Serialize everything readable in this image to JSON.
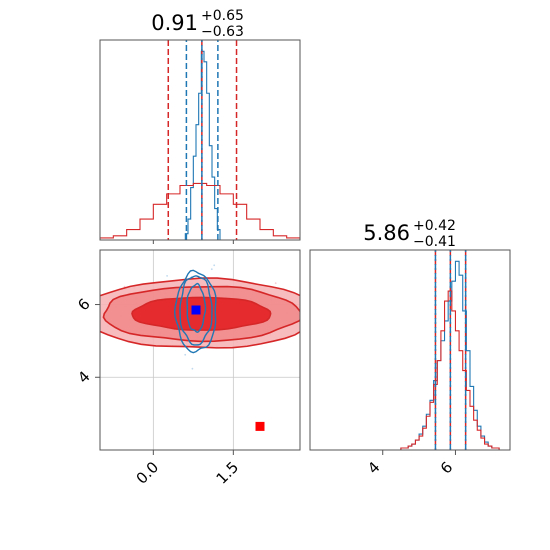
{
  "figure": {
    "titles": {
      "p1_main": "0.91",
      "p1_plus": "+0.65",
      "p1_minus": "−0.63",
      "p2_main": "5.86",
      "p2_plus": "+0.42",
      "p2_minus": "−0.41"
    }
  },
  "colors": {
    "blue": "#1f77b4",
    "red": "#d62728",
    "red_fill": "#e31a1c",
    "marker_blue": "#0000ff",
    "marker_red": "#ff0000",
    "axis": "#555555",
    "grid": "#c8c8c8"
  },
  "chart_data": [
    {
      "type": "histogram",
      "panel": "p1 marginal",
      "xlim": [
        -1.0,
        2.75
      ],
      "grid": false,
      "x_tick_labels": [],
      "series": [
        {
          "name": "",
          "color": "blue",
          "bin_edges": [
            0.6,
            0.65,
            0.7,
            0.75,
            0.8,
            0.85,
            0.9,
            0.95,
            1.0,
            1.05,
            1.1,
            1.15,
            1.2,
            1.25
          ],
          "counts": [
            3,
            10,
            25,
            40,
            55,
            70,
            90,
            85,
            70,
            45,
            30,
            15,
            5
          ]
        },
        {
          "name": "",
          "color": "red",
          "bin_edges": [
            -1.0,
            -0.75,
            -0.5,
            -0.25,
            0.0,
            0.25,
            0.5,
            0.75,
            1.0,
            1.25,
            1.5,
            1.75,
            2.0,
            2.25,
            2.5,
            2.75
          ],
          "counts": [
            1,
            2,
            5,
            10,
            17,
            22,
            26,
            27,
            26,
            22,
            17,
            10,
            5,
            2,
            1
          ]
        }
      ],
      "quantile_lines": {
        "blue": [
          0.62,
          0.91,
          1.21
        ],
        "red": [
          0.28,
          0.91,
          1.56
        ]
      }
    },
    {
      "type": "scatter-contour",
      "panel": "p1 vs p2",
      "xlim": [
        -1.0,
        2.75
      ],
      "ylim": [
        2.0,
        7.5
      ],
      "x_ticks": [
        0.0,
        1.5
      ],
      "x_tick_labels": [
        "0.0",
        "1.5"
      ],
      "y_ticks": [
        4,
        6
      ],
      "y_tick_labels": [
        "4",
        "6"
      ],
      "grid": true,
      "red_contours": [
        {
          "cx": 0.9,
          "cy": 5.75,
          "rx": 1.3,
          "ry": 0.45
        },
        {
          "cx": 0.9,
          "cy": 5.75,
          "rx": 1.85,
          "ry": 0.75
        },
        {
          "cx": 0.9,
          "cy": 5.75,
          "rx": 2.2,
          "ry": 0.95
        }
      ],
      "blue_contours": [
        {
          "cx": 0.8,
          "cy": 5.9,
          "rx": 0.17,
          "ry": 0.65
        },
        {
          "cx": 0.8,
          "cy": 5.85,
          "rx": 0.3,
          "ry": 0.95
        },
        {
          "cx": 0.8,
          "cy": 5.8,
          "rx": 0.38,
          "ry": 1.1
        }
      ],
      "markers": [
        {
          "x": 0.8,
          "y": 5.85,
          "color": "marker_blue"
        },
        {
          "x": 2.0,
          "y": 2.65,
          "color": "marker_red"
        }
      ]
    },
    {
      "type": "histogram",
      "panel": "p2 marginal",
      "xlim": [
        2.0,
        7.5
      ],
      "x_ticks": [
        4,
        6
      ],
      "x_tick_labels": [
        "4",
        "6"
      ],
      "grid": false,
      "series": [
        {
          "name": "",
          "color": "blue",
          "bin_edges": [
            4.5,
            4.6,
            4.7,
            4.8,
            4.9,
            5.0,
            5.1,
            5.2,
            5.3,
            5.4,
            5.5,
            5.6,
            5.7,
            5.8,
            5.9,
            6.0,
            6.1,
            6.2,
            6.3,
            6.4,
            6.5,
            6.6,
            6.7,
            6.8,
            6.9,
            7.0,
            7.1,
            7.2
          ],
          "counts": [
            1,
            1,
            2,
            3,
            5,
            8,
            12,
            18,
            25,
            35,
            45,
            55,
            65,
            75,
            85,
            95,
            88,
            70,
            50,
            32,
            20,
            12,
            7,
            4,
            2,
            1,
            1
          ]
        },
        {
          "name": "",
          "color": "red",
          "bin_edges": [
            4.5,
            4.6,
            4.7,
            4.8,
            4.9,
            5.0,
            5.1,
            5.2,
            5.3,
            5.4,
            5.5,
            5.6,
            5.7,
            5.8,
            5.9,
            6.0,
            6.1,
            6.2,
            6.3,
            6.4,
            6.5,
            6.6,
            6.7,
            6.8,
            6.9,
            7.0,
            7.1,
            7.2
          ],
          "counts": [
            1,
            1,
            2,
            3,
            5,
            7,
            11,
            17,
            24,
            33,
            45,
            60,
            75,
            80,
            70,
            60,
            50,
            40,
            30,
            22,
            15,
            10,
            6,
            3,
            2,
            1,
            1
          ]
        }
      ],
      "quantile_lines": {
        "blue": [
          5.45,
          5.86,
          6.28
        ],
        "red": [
          5.45,
          5.86,
          6.28
        ]
      }
    }
  ]
}
